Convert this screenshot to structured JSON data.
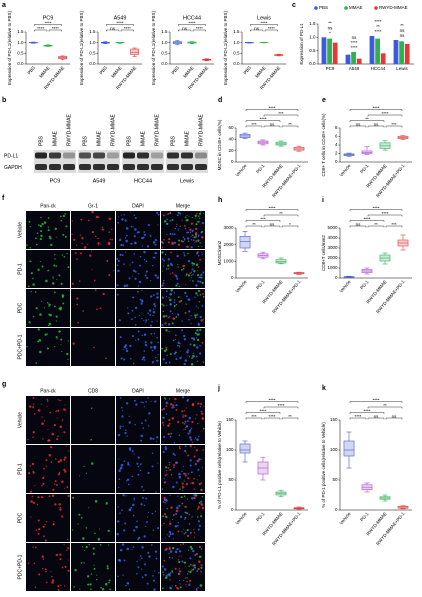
{
  "panel_labels": [
    "a",
    "b",
    "c",
    "d",
    "e",
    "f",
    "g",
    "h",
    "i",
    "j",
    "k"
  ],
  "chart_data": [
    {
      "type": "box",
      "title": "PC9",
      "ylabel": "Expression of PD-L1(relative to PBS)",
      "categories": [
        "PBS",
        "MMAE",
        "RWYD-MMAE"
      ],
      "colors": [
        "#3b5bdb",
        "#2cb34a",
        "#e03a3a"
      ],
      "boxes": [
        [
          0.97,
          0.99,
          1.0,
          1.01,
          1.03
        ],
        [
          0.82,
          0.84,
          0.86,
          0.88,
          0.9
        ],
        [
          0.2,
          0.25,
          0.3,
          0.35,
          0.38
        ]
      ],
      "ylim": [
        0,
        1.5
      ],
      "yticks": [
        {
          "value": 0,
          "label": "0.0"
        },
        0.5,
        {
          "value": 1,
          "label": "1.0"
        },
        1.5
      ],
      "annotations": [
        {
          "text": "****",
          "between": [
            "PBS",
            "MMAE"
          ]
        },
        {
          "text": "****",
          "between": [
            "MMAE",
            "RWYD-MMAE"
          ]
        },
        {
          "text": "****",
          "between": [
            "PBS",
            "RWYD-MMAE"
          ]
        }
      ]
    },
    {
      "type": "box",
      "title": "A549",
      "ylabel": "Expression of PD-L1(relative to PBS)",
      "categories": [
        "PBS",
        "MMAE",
        "RWYD-MMAE"
      ],
      "colors": [
        "#3b5bdb",
        "#2cb34a",
        "#e03a3a"
      ],
      "boxes": [
        [
          0.95,
          0.98,
          1.0,
          1.02,
          1.05
        ],
        [
          0.97,
          0.99,
          1.0,
          1.01,
          1.02
        ],
        [
          0.35,
          0.45,
          0.55,
          0.7,
          0.75
        ]
      ],
      "ylim": [
        0,
        1.5
      ],
      "yticks": [
        {
          "value": 0,
          "label": "0.0"
        },
        0.5,
        {
          "value": 1,
          "label": "1.0"
        },
        1.5
      ],
      "annotations": [
        {
          "text": "ns",
          "between": [
            "PBS",
            "MMAE"
          ]
        },
        {
          "text": "****",
          "between": [
            "MMAE",
            "RWYD-MMAE"
          ]
        },
        {
          "text": "****",
          "between": [
            "PBS",
            "RWYD-MMAE"
          ]
        }
      ]
    },
    {
      "type": "box",
      "title": "HCC44",
      "ylabel": "Expression of PD-L1(relative to PBS)",
      "categories": [
        "PBS",
        "MMAE",
        "RWYD-MMAE"
      ],
      "colors": [
        "#3b5bdb",
        "#2cb34a",
        "#e03a3a"
      ],
      "boxes": [
        [
          0.9,
          0.95,
          1.0,
          1.05,
          1.1
        ],
        [
          0.95,
          0.98,
          1.0,
          1.03,
          1.05
        ],
        [
          0.15,
          0.18,
          0.2,
          0.22,
          0.25
        ]
      ],
      "ylim": [
        0,
        1.5
      ],
      "yticks": [
        {
          "value": 0,
          "label": "0.0"
        },
        0.5,
        {
          "value": 1,
          "label": "1.0"
        },
        1.5
      ],
      "annotations": [
        {
          "text": "ns",
          "between": [
            "PBS",
            "MMAE"
          ]
        },
        {
          "text": "****",
          "between": [
            "MMAE",
            "RWYD-MMAE"
          ]
        },
        {
          "text": "****",
          "between": [
            "PBS",
            "RWYD-MMAE"
          ]
        }
      ]
    },
    {
      "type": "box",
      "title": "Lewis",
      "ylabel": "Expression of PD-L1(relative to PBS)",
      "categories": [
        "PBS",
        "MMAE",
        "RWYD-MMAE"
      ],
      "colors": [
        "#3b5bdb",
        "#2cb34a",
        "#e03a3a"
      ],
      "boxes": [
        [
          0.98,
          0.99,
          1.0,
          1.01,
          1.02
        ],
        [
          0.99,
          1.0,
          1.0,
          1.01,
          1.02
        ],
        [
          0.38,
          0.4,
          0.42,
          0.44,
          0.46
        ]
      ],
      "ylim": [
        0,
        1.5
      ],
      "yticks": [
        {
          "value": 0,
          "label": "0.0"
        },
        0.5,
        {
          "value": 1,
          "label": "1.0"
        },
        1.5
      ],
      "annotations": [
        {
          "text": "ns",
          "between": [
            "PBS",
            "MMAE"
          ]
        },
        {
          "text": "****",
          "between": [
            "MMAE",
            "RWYD-MMAE"
          ]
        },
        {
          "text": "****",
          "between": [
            "PBS",
            "RWYD-MMAE"
          ]
        }
      ]
    },
    {
      "type": "bar",
      "ylabel": "Expression of PD-L1",
      "categories": [
        "PC9",
        "A549",
        "HCC44",
        "Lewis"
      ],
      "series": [
        {
          "name": "PBS",
          "color": "#3b5bdb",
          "values": [
            1.0,
            0.35,
            1.05,
            0.9
          ]
        },
        {
          "name": "MMAE",
          "color": "#2cb34a",
          "values": [
            0.95,
            0.45,
            0.95,
            0.85
          ]
        },
        {
          "name": "RWYD-MMAE",
          "color": "#e03a3a",
          "values": [
            0.8,
            0.2,
            0.4,
            0.75
          ]
        }
      ],
      "ylim": [
        0,
        1.5
      ],
      "yticks": [
        {
          "value": 0,
          "label": "0.0"
        },
        0.5,
        {
          "value": 1,
          "label": "1.0"
        },
        1.5
      ],
      "annotations": [
        {
          "category": "PC9",
          "texts": [
            "*",
            "ns",
            "**"
          ]
        },
        {
          "category": "A549",
          "texts": [
            "****",
            "****",
            "ns"
          ]
        },
        {
          "category": "HCC44",
          "texts": [
            "****",
            "**",
            "****"
          ]
        },
        {
          "category": "Lewis",
          "texts": [
            "ns",
            "ns",
            "**"
          ]
        }
      ]
    },
    {
      "type": "box",
      "ylabel": "MDSC in CD45+ cells(%)",
      "categories": [
        "Vehicle",
        "PD-1",
        "RWYD-MMAE",
        "RWYD-MMAE+PD-1"
      ],
      "colors": [
        "#4b5bd0",
        "#b04fd0",
        "#2eae5a",
        "#e04040"
      ],
      "boxes": [
        [
          41,
          43,
          46,
          49,
          51
        ],
        [
          30,
          32,
          35,
          37,
          39
        ],
        [
          28,
          30,
          32,
          35,
          37
        ],
        [
          19,
          21,
          23,
          26,
          28
        ]
      ],
      "ylim": [
        0,
        60
      ],
      "yticks": [
        0,
        20,
        40,
        60
      ],
      "annotations": [
        {
          "text": "***",
          "between": [
            "Vehicle",
            "PD-1"
          ]
        },
        {
          "text": "ns",
          "between": [
            "PD-1",
            "RWYD-MMAE"
          ]
        },
        {
          "text": "**",
          "between": [
            "RWYD-MMAE",
            "RWYD-MMAE+PD-1"
          ]
        },
        {
          "text": "****",
          "between": [
            "Vehicle",
            "RWYD-MMAE"
          ]
        },
        {
          "text": "***",
          "between": [
            "PD-1",
            "RWYD-MMAE+PD-1"
          ]
        },
        {
          "text": "****",
          "between": [
            "Vehicle",
            "RWYD-MMAE+PD-1"
          ]
        }
      ]
    },
    {
      "type": "box",
      "ylabel": "CD8+ T cells in CD45+ cells(%)",
      "categories": [
        "Vehicle",
        "PD-1",
        "RWYD-MMAE",
        "RWYD-MMAE+PD-1"
      ],
      "colors": [
        "#4b5bd0",
        "#b04fd0",
        "#2eae5a",
        "#e04040"
      ],
      "boxes": [
        [
          1.3,
          1.5,
          1.7,
          1.9,
          2.1
        ],
        [
          1.8,
          2.0,
          2.2,
          2.6,
          3.6
        ],
        [
          2.8,
          3.2,
          3.8,
          4.5,
          5.0
        ],
        [
          5.3,
          5.5,
          5.8,
          6.0,
          6.2
        ]
      ],
      "ylim": [
        0,
        8
      ],
      "yticks": [
        0,
        2,
        4,
        6,
        8
      ],
      "annotations": [
        {
          "text": "ns",
          "between": [
            "Vehicle",
            "PD-1"
          ]
        },
        {
          "text": "ns",
          "between": [
            "PD-1",
            "RWYD-MMAE"
          ]
        },
        {
          "text": "***",
          "between": [
            "RWYD-MMAE",
            "RWYD-MMAE+PD-1"
          ]
        },
        {
          "text": "**",
          "between": [
            "Vehicle",
            "RWYD-MMAE"
          ]
        },
        {
          "text": "****",
          "between": [
            "PD-1",
            "RWYD-MMAE+PD-1"
          ]
        },
        {
          "text": "****",
          "between": [
            "Vehicle",
            "RWYD-MMAE+PD-1"
          ]
        }
      ]
    },
    {
      "type": "box",
      "ylabel": "MDSC/mm2",
      "categories": [
        "Vehicle",
        "PD-1",
        "RWYD-MMAE",
        "RWYD-MMAE+PD-1"
      ],
      "colors": [
        "#4b5bd0",
        "#b04fd0",
        "#2eae5a",
        "#e04040"
      ],
      "boxes": [
        [
          1600,
          1800,
          2200,
          2500,
          2800
        ],
        [
          1150,
          1250,
          1350,
          1450,
          1550
        ],
        [
          850,
          900,
          1000,
          1100,
          1200
        ],
        [
          200,
          250,
          300,
          330,
          350
        ]
      ],
      "ylim": [
        0,
        3000
      ],
      "yticks": [
        0,
        1000,
        2000,
        3000
      ],
      "annotations": [
        {
          "text": "**",
          "between": [
            "Vehicle",
            "PD-1"
          ]
        },
        {
          "text": "ns",
          "between": [
            "PD-1",
            "RWYD-MMAE"
          ]
        },
        {
          "text": "*",
          "between": [
            "RWYD-MMAE",
            "RWYD-MMAE+PD-1"
          ]
        },
        {
          "text": "***",
          "between": [
            "Vehicle",
            "RWYD-MMAE"
          ]
        },
        {
          "text": "**",
          "between": [
            "PD-1",
            "RWYD-MMAE+PD-1"
          ]
        },
        {
          "text": "****",
          "between": [
            "Vehicle",
            "RWYD-MMAE+PD-1"
          ]
        }
      ]
    },
    {
      "type": "box",
      "ylabel": "CD8+T cells/mm2",
      "categories": [
        "Vehicle",
        "PD-1",
        "RWYD-MMAE",
        "RWYD-MMAE+PD-1"
      ],
      "colors": [
        "#4b5bd0",
        "#b04fd0",
        "#2eae5a",
        "#e04040"
      ],
      "boxes": [
        [
          50,
          80,
          100,
          140,
          180
        ],
        [
          400,
          550,
          700,
          850,
          1000
        ],
        [
          1400,
          1700,
          2000,
          2300,
          2500
        ],
        [
          2800,
          3200,
          3500,
          3800,
          4300
        ]
      ],
      "ylim": [
        0,
        5000
      ],
      "yticks": [
        0,
        1000,
        2000,
        3000,
        4000,
        5000
      ],
      "annotations": [
        {
          "text": "ns",
          "between": [
            "Vehicle",
            "PD-1"
          ]
        },
        {
          "text": "**",
          "between": [
            "PD-1",
            "RWYD-MMAE"
          ]
        },
        {
          "text": "***",
          "between": [
            "RWYD-MMAE",
            "RWYD-MMAE+PD-1"
          ]
        },
        {
          "text": "****",
          "between": [
            "Vehicle",
            "RWYD-MMAE"
          ]
        },
        {
          "text": "****",
          "between": [
            "PD-1",
            "RWYD-MMAE+PD-1"
          ]
        },
        {
          "text": "****",
          "between": [
            "Vehicle",
            "RWYD-MMAE+PD-1"
          ]
        }
      ]
    },
    {
      "type": "box",
      "ylabel": "% of PD-L1 positive cells(relative to Vehicle)",
      "categories": [
        "Vehicle",
        "PD-1",
        "RWYD-MMAE",
        "RWYD-MMAE+PD-1"
      ],
      "colors": [
        "#4b5bd0",
        "#b04fd0",
        "#2eae5a",
        "#e04040"
      ],
      "boxes": [
        [
          80,
          95,
          100,
          110,
          115
        ],
        [
          50,
          60,
          70,
          80,
          88
        ],
        [
          22,
          25,
          28,
          30,
          33
        ],
        [
          1,
          2,
          3,
          4,
          5
        ]
      ],
      "ylim": [
        0,
        150
      ],
      "yticks": [
        0,
        50,
        100,
        150
      ],
      "annotations": [
        {
          "text": "***",
          "between": [
            "Vehicle",
            "PD-1"
          ]
        },
        {
          "text": "****",
          "between": [
            "PD-1",
            "RWYD-MMAE"
          ]
        },
        {
          "text": "**",
          "between": [
            "RWYD-MMAE",
            "RWYD-MMAE+PD-1"
          ]
        },
        {
          "text": "****",
          "between": [
            "Vehicle",
            "RWYD-MMAE"
          ]
        },
        {
          "text": "****",
          "between": [
            "PD-1",
            "RWYD-MMAE+PD-1"
          ]
        },
        {
          "text": "****",
          "between": [
            "Vehicle",
            "RWYD-MMAE+PD-1"
          ]
        }
      ]
    },
    {
      "type": "box",
      "ylabel": "% of PD-1 positive cells(relative to Vehicle)",
      "categories": [
        "Vehicle",
        "PD-1",
        "RWYD-MMAE",
        "RWYD-MMAE+PD-1"
      ],
      "colors": [
        "#4b5bd0",
        "#b04fd0",
        "#2eae5a",
        "#e04040"
      ],
      "boxes": [
        [
          70,
          90,
          100,
          115,
          130
        ],
        [
          30,
          34,
          38,
          42,
          45
        ],
        [
          15,
          18,
          20,
          22,
          25
        ],
        [
          2,
          3,
          5,
          6,
          7
        ]
      ],
      "ylim": [
        0,
        150
      ],
      "yticks": [
        0,
        50,
        100,
        150
      ],
      "annotations": [
        {
          "text": "****",
          "between": [
            "Vehicle",
            "PD-1"
          ]
        },
        {
          "text": "ns",
          "between": [
            "PD-1",
            "RWYD-MMAE"
          ]
        },
        {
          "text": "ns",
          "between": [
            "RWYD-MMAE",
            "RWYD-MMAE+PD-1"
          ]
        },
        {
          "text": "****",
          "between": [
            "Vehicle",
            "RWYD-MMAE"
          ]
        },
        {
          "text": "**",
          "between": [
            "PD-1",
            "RWYD-MMAE+PD-1"
          ]
        },
        {
          "text": "****",
          "between": [
            "Vehicle",
            "RWYD-MMAE+PD-1"
          ]
        }
      ]
    }
  ],
  "blot": {
    "lanes": [
      "PBS",
      "MMAE",
      "RWYD-MMAE"
    ],
    "groups": [
      "PC9",
      "A549",
      "HCC44",
      "Lewis"
    ],
    "rows": [
      "PD-L1",
      "GAPDH"
    ]
  },
  "images_f": {
    "columns": [
      "Pan-ck",
      "Gr-1",
      "DAPI",
      "Merge"
    ],
    "column_colors": [
      "#2ecc40",
      "#ff3030",
      "#3a6bff",
      "#000000"
    ],
    "rows": [
      "Vehicle",
      "PD-1",
      "PDC",
      "PDC+PD-1"
    ]
  },
  "images_g": {
    "columns": [
      "Pan-ck",
      "CD8",
      "DAPI",
      "Merge"
    ],
    "column_colors": [
      "#ff3030",
      "#2ecc40",
      "#3a6bff",
      "#000000"
    ],
    "rows": [
      "Vehicle",
      "PD-1",
      "PDC",
      "PDC+PD-1"
    ]
  }
}
